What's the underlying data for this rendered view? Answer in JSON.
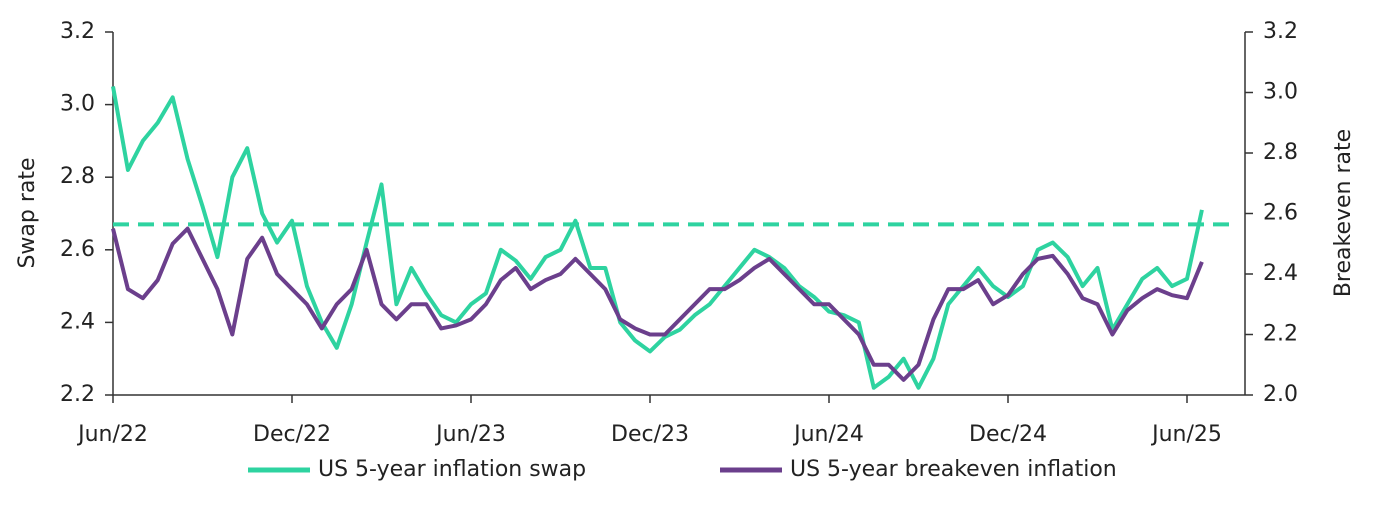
{
  "chart_data": {
    "type": "line",
    "categories": [
      "Jun/22",
      null,
      null,
      null,
      null,
      null,
      null,
      null,
      null,
      null,
      null,
      null,
      "Dec/22",
      null,
      null,
      null,
      null,
      null,
      null,
      null,
      null,
      null,
      null,
      null,
      "Jun/23",
      null,
      null,
      null,
      null,
      null,
      null,
      null,
      null,
      null,
      null,
      null,
      "Dec/23",
      null,
      null,
      null,
      null,
      null,
      null,
      null,
      null,
      null,
      null,
      null,
      "Jun/24",
      null,
      null,
      null,
      null,
      null,
      null,
      null,
      null,
      null,
      null,
      null,
      "Dec/24",
      null,
      null,
      null,
      null,
      null,
      null,
      null,
      null,
      null,
      null,
      null,
      "Jun/25",
      null
    ],
    "series": [
      {
        "name": "US 5-year inflation swap",
        "color": "#2ed3a0",
        "axis": "y",
        "values": [
          3.05,
          2.82,
          2.9,
          2.95,
          3.02,
          2.85,
          2.72,
          2.58,
          2.8,
          2.88,
          2.7,
          2.62,
          2.68,
          2.5,
          2.4,
          2.33,
          2.45,
          2.62,
          2.78,
          2.45,
          2.55,
          2.48,
          2.42,
          2.4,
          2.45,
          2.48,
          2.6,
          2.57,
          2.52,
          2.58,
          2.6,
          2.68,
          2.55,
          2.55,
          2.4,
          2.35,
          2.32,
          2.36,
          2.38,
          2.42,
          2.45,
          2.5,
          2.55,
          2.6,
          2.58,
          2.55,
          2.5,
          2.47,
          2.43,
          2.42,
          2.4,
          2.22,
          2.25,
          2.3,
          2.22,
          2.3,
          2.45,
          2.5,
          2.55,
          2.5,
          2.47,
          2.5,
          2.6,
          2.62,
          2.58,
          2.5,
          2.55,
          2.38,
          2.45,
          2.52,
          2.55,
          2.5,
          2.52,
          2.71
        ]
      },
      {
        "name": "US 5-year breakeven inflation",
        "color": "#6b3f8c",
        "axis": "y2",
        "values": [
          2.55,
          2.35,
          2.32,
          2.38,
          2.5,
          2.55,
          2.45,
          2.35,
          2.2,
          2.45,
          2.52,
          2.4,
          2.35,
          2.3,
          2.22,
          2.3,
          2.35,
          2.48,
          2.3,
          2.25,
          2.3,
          2.3,
          2.22,
          2.23,
          2.25,
          2.3,
          2.38,
          2.42,
          2.35,
          2.38,
          2.4,
          2.45,
          2.4,
          2.35,
          2.25,
          2.22,
          2.2,
          2.2,
          2.25,
          2.3,
          2.35,
          2.35,
          2.38,
          2.42,
          2.45,
          2.4,
          2.35,
          2.3,
          2.3,
          2.25,
          2.2,
          2.1,
          2.1,
          2.05,
          2.1,
          2.25,
          2.35,
          2.35,
          2.38,
          2.3,
          2.33,
          2.4,
          2.45,
          2.46,
          2.4,
          2.32,
          2.3,
          2.2,
          2.28,
          2.32,
          2.35,
          2.33,
          2.32,
          2.44
        ]
      }
    ],
    "reference_line": {
      "value": 2.67,
      "axis": "y",
      "color": "#2ed3a0"
    },
    "ylabel": "Swap rate",
    "y2label": "Breakeven rate",
    "ylim": [
      2.2,
      3.2
    ],
    "yticks": [
      2.2,
      2.4,
      2.6,
      2.8,
      {
        "value": 3,
        "label": "3.0"
      },
      3.2
    ],
    "y2lim": [
      2.0,
      3.2
    ],
    "y2ticks": [
      {
        "value": 2,
        "label": "2.0"
      },
      2.2,
      2.4,
      2.6,
      2.8,
      {
        "value": 3,
        "label": "3.0"
      },
      3.2
    ],
    "legend": "bottom"
  }
}
